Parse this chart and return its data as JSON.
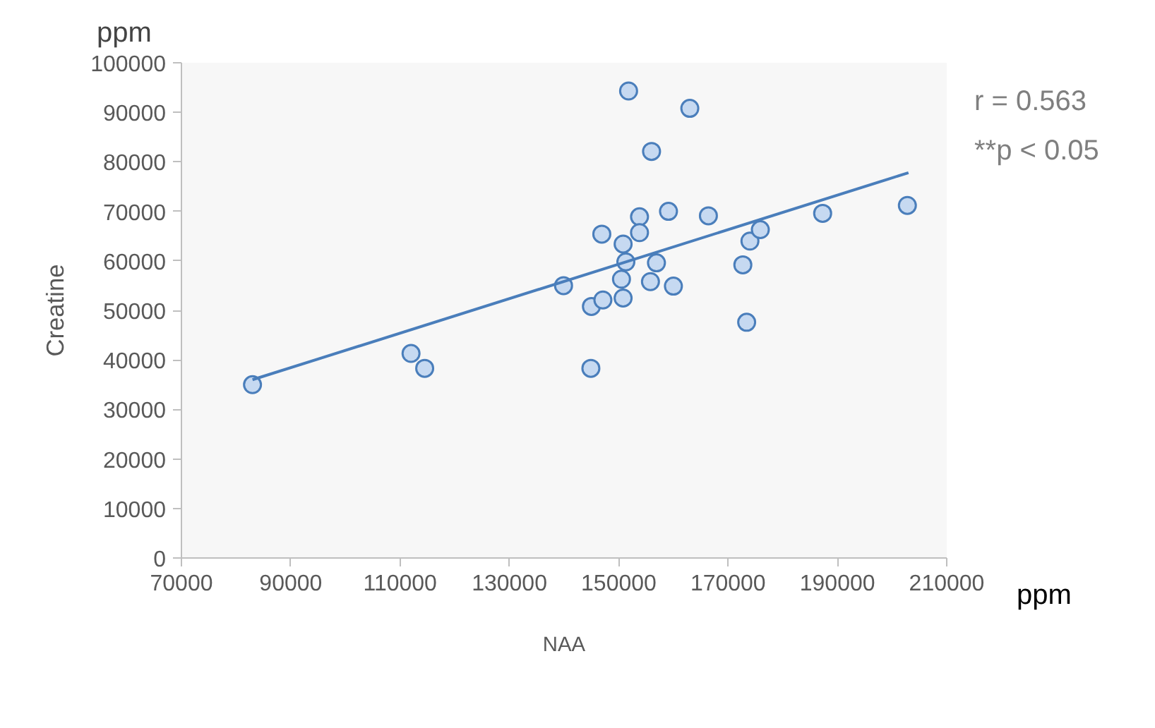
{
  "chart_data": {
    "type": "scatter",
    "xlabel": "NAA",
    "ylabel": "Creatine",
    "annotations": [
      "r = 0.563",
      "**p < 0.05",
      "ppm",
      "ppm"
    ],
    "xlim": [
      70000,
      210000
    ],
    "xticks": [
      70000,
      90000,
      110000,
      130000,
      150000,
      170000,
      190000,
      210000
    ],
    "ylim": [
      0,
      100000
    ],
    "yticks": [
      0,
      10000,
      20000,
      30000,
      40000,
      50000,
      60000,
      70000,
      80000,
      90000,
      100000
    ],
    "grid": false,
    "marker": "circle",
    "series": [
      {
        "color": "#4a7ebb",
        "x": [
          83000,
          112000,
          114500,
          139900,
          144900,
          145000,
          147100,
          146900,
          150800,
          150500,
          150800,
          151300,
          151800,
          153800,
          153800,
          155800,
          156000,
          156900,
          159100,
          160000,
          163000,
          166400,
          172700,
          173400,
          174000,
          175900,
          187300,
          202800
        ],
        "values": [
          35000,
          41300,
          38300,
          55000,
          38300,
          50800,
          52100,
          65400,
          52500,
          56300,
          63400,
          59800,
          94300,
          68900,
          65700,
          55800,
          82100,
          59600,
          70000,
          54900,
          90800,
          69100,
          59200,
          47600,
          64000,
          66300,
          69600,
          71200
        ]
      },
      {
        "type": "line",
        "marker": "none",
        "color": "#4a7ebb",
        "x": [
          83000,
          203000
        ],
        "values": [
          36000,
          77800
        ]
      }
    ]
  }
}
